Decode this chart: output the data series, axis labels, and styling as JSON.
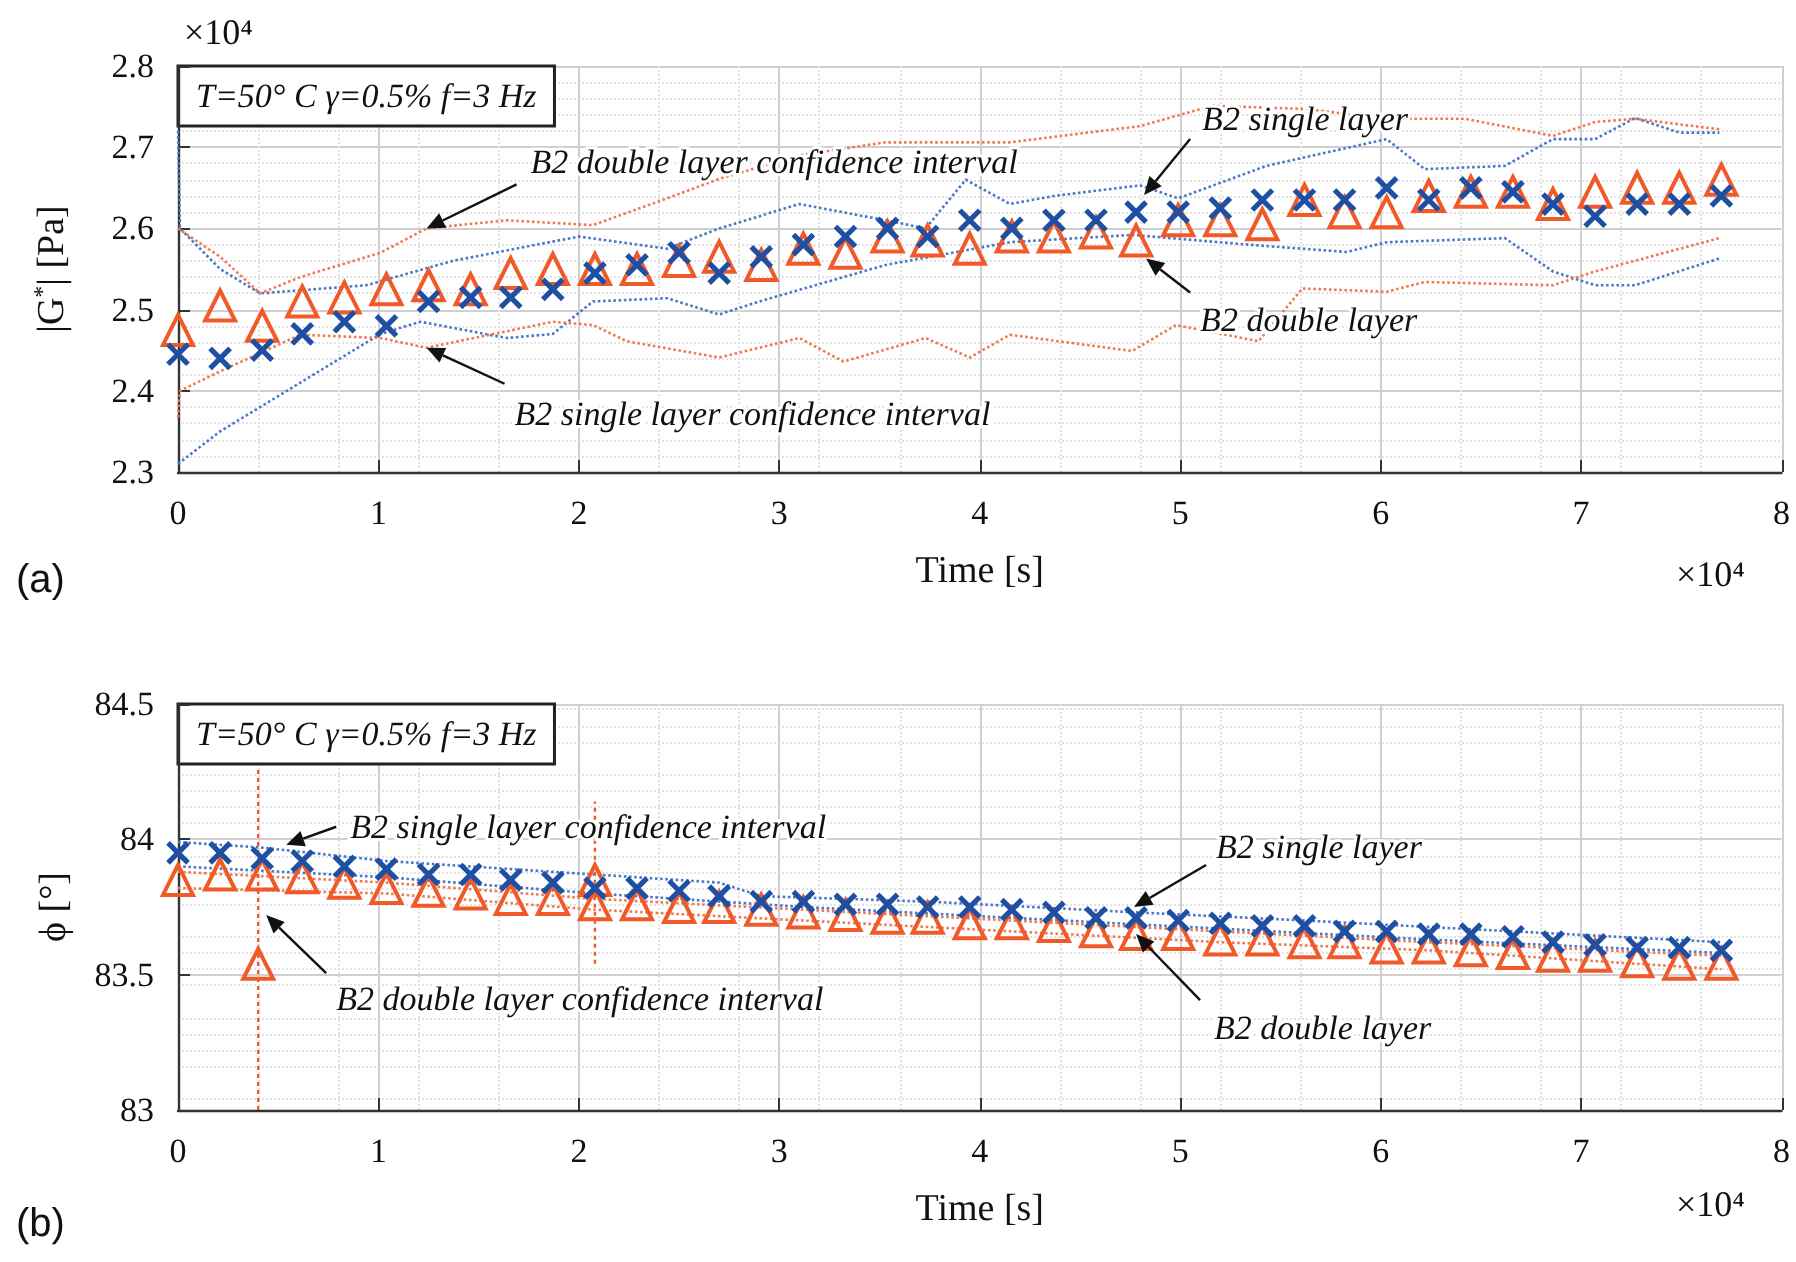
{
  "chart_data": [
    {
      "type": "scatter",
      "xlabel": "Time [s]",
      "ylabel": "|G$^{*}$| [Pa]",
      "xlim": [
        0,
        8
      ],
      "xticks": [
        0,
        1,
        2,
        3,
        4,
        5,
        6,
        7,
        8
      ],
      "ylim": [
        2.3,
        2.8
      ],
      "yticks": [
        2.3,
        2.4,
        2.5,
        2.6,
        2.7,
        2.8
      ],
      "grid": true,
      "x": [
        0,
        0.21,
        0.42,
        0.62,
        0.83,
        1.04,
        1.25,
        1.46,
        1.66,
        1.87,
        2.08,
        2.29,
        2.5,
        2.7,
        2.91,
        3.12,
        3.33,
        3.54,
        3.74,
        3.95,
        4.16,
        4.37,
        4.58,
        4.78,
        4.99,
        5.2,
        5.41,
        5.62,
        5.82,
        6.03,
        6.24,
        6.45,
        6.66,
        6.86,
        7.07,
        7.28,
        7.49,
        7.7
      ],
      "series": [
        {
          "type": "line",
          "color": "#4a78c8",
          "marker": "none",
          "line_style": "dotted",
          "x": [
            0,
            0.01,
            0.21,
            0.41,
            0.94,
            1.37,
            2.0,
            2.44,
            2.7,
            3.1,
            3.53,
            3.73,
            3.93,
            4.15,
            4.37,
            4.8,
            4.99,
            5.43,
            6.03,
            6.22,
            6.62,
            6.86,
            7.07,
            7.27,
            7.49,
            7.69
          ],
          "values": [
            2.72,
            2.6,
            2.55,
            2.52,
            2.53,
            2.56,
            2.59,
            2.575,
            2.6,
            2.63,
            2.61,
            2.6,
            2.66,
            2.63,
            2.64,
            2.653,
            2.637,
            2.677,
            2.71,
            2.673,
            2.677,
            2.71,
            2.71,
            2.736,
            2.718,
            2.718
          ]
        },
        {
          "type": "line",
          "color": "#4a78c8",
          "marker": "none",
          "line_style": "dotted",
          "x": [
            0,
            0.21,
            0.61,
            1.01,
            1.21,
            1.64,
            1.87,
            2.07,
            2.44,
            2.7,
            2.9,
            3.53,
            4.15,
            4.76,
            5.39,
            5.83,
            6.03,
            6.62,
            6.86,
            7.07,
            7.27,
            7.69
          ],
          "values": [
            2.31,
            2.35,
            2.41,
            2.47,
            2.485,
            2.465,
            2.47,
            2.51,
            2.514,
            2.494,
            2.51,
            2.555,
            2.583,
            2.592,
            2.579,
            2.571,
            2.583,
            2.588,
            2.547,
            2.53,
            2.53,
            2.563
          ]
        },
        {
          "type": "line",
          "color": "#f07a50",
          "marker": "none",
          "line_style": "dotted",
          "x": [
            0,
            0.21,
            0.41,
            0.61,
            1.01,
            1.24,
            1.64,
            2.07,
            2.44,
            2.7,
            3.1,
            3.53,
            4.15,
            4.8,
            5.16,
            5.63,
            6.03,
            6.42,
            6.86,
            7.07,
            7.27,
            7.69
          ],
          "values": [
            2.6,
            2.565,
            2.52,
            2.54,
            2.57,
            2.6,
            2.61,
            2.604,
            2.637,
            2.661,
            2.69,
            2.706,
            2.706,
            2.726,
            2.751,
            2.747,
            2.735,
            2.735,
            2.714,
            2.731,
            2.735,
            2.722
          ]
        },
        {
          "type": "line",
          "color": "#f07a50",
          "marker": "none",
          "line_style": "dotted",
          "x": [
            0,
            0.01,
            0.21,
            0.61,
            1.01,
            1.24,
            1.87,
            2.07,
            2.24,
            2.7,
            3.1,
            3.32,
            3.73,
            3.95,
            4.15,
            4.76,
            4.98,
            5.39,
            5.61,
            6.03,
            6.22,
            6.86,
            7.07,
            7.69
          ],
          "values": [
            2.367,
            2.4,
            2.424,
            2.469,
            2.465,
            2.453,
            2.485,
            2.481,
            2.461,
            2.441,
            2.465,
            2.436,
            2.465,
            2.441,
            2.469,
            2.449,
            2.481,
            2.461,
            2.526,
            2.522,
            2.534,
            2.53,
            2.547,
            2.588
          ]
        },
        {
          "type": "scatter",
          "color": "#f05a28",
          "marker": "triangle",
          "values": [
            2.475,
            2.505,
            2.48,
            2.51,
            2.515,
            2.525,
            2.53,
            2.525,
            2.545,
            2.55,
            2.55,
            2.55,
            2.56,
            2.565,
            2.555,
            2.575,
            2.57,
            2.59,
            2.585,
            2.575,
            2.59,
            2.59,
            2.595,
            2.585,
            2.61,
            2.61,
            2.605,
            2.635,
            2.62,
            2.62,
            2.64,
            2.645,
            2.645,
            2.63,
            2.645,
            2.65,
            2.65,
            2.66
          ]
        },
        {
          "type": "scatter",
          "color": "#1f4fa3",
          "marker": "cross",
          "values": [
            2.445,
            2.44,
            2.45,
            2.47,
            2.485,
            2.48,
            2.51,
            2.515,
            2.515,
            2.525,
            2.545,
            2.555,
            2.57,
            2.545,
            2.565,
            2.58,
            2.59,
            2.6,
            2.59,
            2.61,
            2.6,
            2.61,
            2.61,
            2.62,
            2.62,
            2.625,
            2.635,
            2.635,
            2.635,
            2.65,
            2.635,
            2.65,
            2.645,
            2.63,
            2.615,
            2.63,
            2.63,
            2.64
          ]
        }
      ],
      "annotations": [
        "T=50° C γ=0.5% f=3 Hz",
        "×10⁴",
        "×10⁴",
        "(a)",
        {
          "text": "B2 double layer confidence interval",
          "x": 1.24,
          "y": 2.6
        },
        {
          "text": "B2 single layer confidence interval",
          "x": 1.24,
          "y": 2.453
        },
        {
          "text": "B2 single layer",
          "x": 4.82,
          "y": 2.641
        },
        {
          "text": "B2 double layer",
          "x": 4.83,
          "y": 2.563
        }
      ]
    },
    {
      "type": "scatter",
      "xlabel": "Time [s]",
      "ylabel": "ϕ [°]",
      "xlim": [
        0,
        8
      ],
      "xticks": [
        0,
        1,
        2,
        3,
        4,
        5,
        6,
        7,
        8
      ],
      "ylim": [
        83,
        84.5
      ],
      "yticks": [
        83,
        83.5,
        84,
        84.5
      ],
      "grid": true,
      "x": [
        0,
        0.21,
        0.42,
        0.62,
        0.83,
        1.04,
        1.25,
        1.46,
        1.66,
        1.87,
        2.08,
        2.29,
        2.5,
        2.7,
        2.91,
        3.12,
        3.33,
        3.54,
        3.74,
        3.95,
        4.16,
        4.37,
        4.58,
        4.78,
        4.99,
        5.2,
        5.41,
        5.62,
        5.82,
        6.03,
        6.24,
        6.45,
        6.66,
        6.86,
        7.07,
        7.28,
        7.49,
        7.7
      ],
      "series": [
        {
          "type": "line",
          "color": "#4a78c8",
          "marker": "none",
          "line_style": "dotted",
          "x": [
            0,
            0.41,
            1.04,
            2.08,
            2.7,
            2.91,
            3.74,
            4.78,
            5.62,
            6.66,
            7.7
          ],
          "values": [
            83.99,
            83.97,
            83.92,
            83.87,
            83.84,
            83.79,
            83.77,
            83.73,
            83.7,
            83.66,
            83.62
          ]
        },
        {
          "type": "line",
          "color": "#4a78c8",
          "marker": "none",
          "line_style": "dotted",
          "x": [
            0,
            1.04,
            2.08,
            3.12,
            4.16,
            5.2,
            6.24,
            7.7
          ],
          "values": [
            83.9,
            83.86,
            83.8,
            83.75,
            83.71,
            83.67,
            83.63,
            83.58
          ]
        },
        {
          "type": "line",
          "color": "#f07a50",
          "marker": "none",
          "line_style": "dotted",
          "x": [
            0,
            1.04,
            2.08,
            3.12,
            4.16,
            5.2,
            6.24,
            7.7
          ],
          "values": [
            83.88,
            83.84,
            83.78,
            83.74,
            83.7,
            83.66,
            83.62,
            83.57
          ]
        },
        {
          "type": "line",
          "color": "#f07a50",
          "marker": "none",
          "line_style": "dotted",
          "x": [
            0,
            1.04,
            2.08,
            3.12,
            4.16,
            5.2,
            6.24,
            7.7
          ],
          "values": [
            83.82,
            83.8,
            83.74,
            83.7,
            83.66,
            83.62,
            83.59,
            83.52
          ]
        },
        {
          "type": "scatter",
          "color": "#f05a28",
          "marker": "triangle",
          "x": [
            0.4,
            2.08
          ],
          "values": [
            83.54,
            83.85
          ],
          "errors": [
            [
              83,
              84.27
            ],
            [
              83.54,
              84.14
            ]
          ]
        },
        {
          "type": "scatter",
          "color": "#f05a28",
          "marker": "triangle",
          "values": [
            83.85,
            83.87,
            83.87,
            83.86,
            83.84,
            83.82,
            83.81,
            83.8,
            83.78,
            83.78,
            83.76,
            83.76,
            83.75,
            83.75,
            83.74,
            83.73,
            83.72,
            83.71,
            83.71,
            83.69,
            83.69,
            83.68,
            83.66,
            83.65,
            83.65,
            83.63,
            83.63,
            83.62,
            83.62,
            83.6,
            83.6,
            83.59,
            83.58,
            83.57,
            83.57,
            83.55,
            83.54,
            83.54
          ]
        },
        {
          "type": "scatter",
          "color": "#1f4fa3",
          "marker": "cross",
          "values": [
            83.95,
            83.95,
            83.93,
            83.92,
            83.9,
            83.89,
            83.87,
            83.87,
            83.85,
            83.84,
            83.82,
            83.82,
            83.81,
            83.79,
            83.77,
            83.77,
            83.76,
            83.76,
            83.75,
            83.75,
            83.74,
            83.73,
            83.71,
            83.71,
            83.7,
            83.69,
            83.68,
            83.68,
            83.66,
            83.66,
            83.65,
            83.65,
            83.64,
            83.62,
            83.61,
            83.6,
            83.6,
            83.59
          ]
        }
      ],
      "annotations": [
        "T=50° C γ=0.5% f=3 Hz",
        "×10⁴",
        "(b)",
        {
          "text": "B2 single layer confidence interval",
          "x": 0.54,
          "y": 83.98
        },
        {
          "text": "B2 double layer confidence interval",
          "x": 0.44,
          "y": 83.72
        },
        {
          "text": "B2 single layer",
          "x": 4.77,
          "y": 83.75
        },
        {
          "text": "B2 double layer",
          "x": 4.78,
          "y": 83.65
        }
      ]
    }
  ]
}
